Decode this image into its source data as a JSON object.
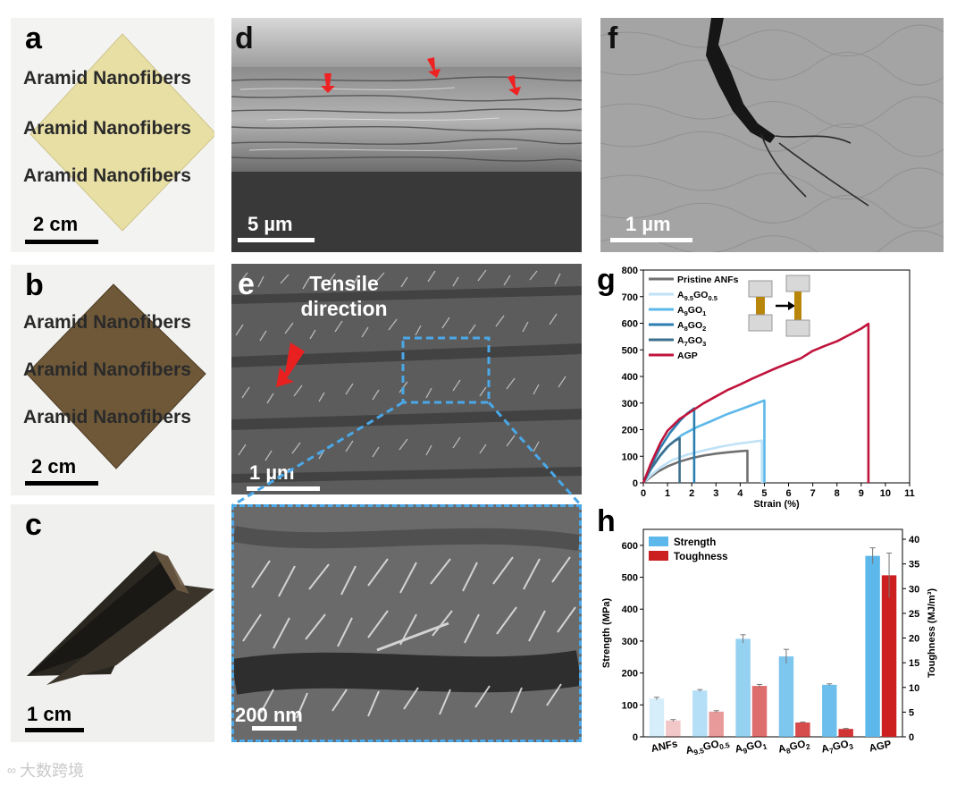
{
  "panels": {
    "a": {
      "letter": "a",
      "film_text": [
        "Aramid Nanofibers",
        "Aramid Nanofibers",
        "Aramid Nanofibers"
      ],
      "scale": "2 cm",
      "film_color": "#e8dfa4"
    },
    "b": {
      "letter": "b",
      "film_text": [
        "Aramid Nanofibers",
        "Aramid Nanofibers",
        "Aramid Nanofibers"
      ],
      "scale": "2 cm",
      "film_color": "#6e5838"
    },
    "c": {
      "letter": "c",
      "scale": "1 cm"
    },
    "d": {
      "letter": "d",
      "scale": "5 µm"
    },
    "e": {
      "letter": "e",
      "annotation": [
        "Tensile",
        "direction"
      ],
      "scale": "1 µm",
      "inset_scale": "200 nm"
    },
    "f": {
      "letter": "f",
      "scale": "1 µm"
    },
    "g": {
      "letter": "g"
    },
    "h": {
      "letter": "h"
    }
  },
  "watermark": "大数跨境",
  "chart_data": [
    {
      "type": "line",
      "panel": "g",
      "xlabel": "Strain (%)",
      "ylabel": "",
      "xlim": [
        0,
        11
      ],
      "ylim": [
        0,
        800
      ],
      "xticks": [
        0,
        1,
        2,
        3,
        4,
        5,
        6,
        7,
        8,
        9,
        10,
        11
      ],
      "yticks": [
        0,
        100,
        200,
        300,
        400,
        500,
        600,
        700,
        800
      ],
      "legend_position": "top-left",
      "series": [
        {
          "name": "Pristine ANFs",
          "color": "#707070",
          "points": [
            [
              0,
              0
            ],
            [
              0.3,
              22
            ],
            [
              0.6,
              42
            ],
            [
              1.0,
              62
            ],
            [
              1.5,
              80
            ],
            [
              2.0,
              93
            ],
            [
              2.5,
              103
            ],
            [
              3.0,
              110
            ],
            [
              3.5,
              115
            ],
            [
              4.0,
              119
            ],
            [
              4.3,
              121
            ],
            [
              4.3,
              0
            ]
          ]
        },
        {
          "name": "A9.5GO0.5",
          "color": "#bfe2f7",
          "points": [
            [
              0,
              0
            ],
            [
              0.3,
              28
            ],
            [
              0.7,
              58
            ],
            [
              1.2,
              86
            ],
            [
              1.8,
              106
            ],
            [
              2.5,
              122
            ],
            [
              3.2,
              136
            ],
            [
              3.8,
              146
            ],
            [
              4.4,
              153
            ],
            [
              4.9,
              159
            ],
            [
              4.9,
              0
            ]
          ]
        },
        {
          "name": "A9GO1",
          "color": "#5cb8ea",
          "points": [
            [
              0,
              0
            ],
            [
              0.3,
              48
            ],
            [
              0.7,
              102
            ],
            [
              1.1,
              145
            ],
            [
              1.6,
              180
            ],
            [
              2.2,
              209
            ],
            [
              2.8,
              232
            ],
            [
              3.4,
              256
            ],
            [
              4.0,
              276
            ],
            [
              4.6,
              296
            ],
            [
              5.0,
              310
            ],
            [
              5.0,
              0
            ]
          ]
        },
        {
          "name": "A8GO2",
          "color": "#2b7fb0",
          "points": [
            [
              0,
              0
            ],
            [
              0.3,
              62
            ],
            [
              0.7,
              132
            ],
            [
              1.1,
              188
            ],
            [
              1.5,
              232
            ],
            [
              1.8,
              260
            ],
            [
              2.1,
              280
            ],
            [
              2.1,
              0
            ]
          ]
        },
        {
          "name": "A7GO3",
          "color": "#3d6f8e",
          "points": [
            [
              0,
              0
            ],
            [
              0.3,
              52
            ],
            [
              0.7,
              104
            ],
            [
              1.0,
              136
            ],
            [
              1.3,
              158
            ],
            [
              1.5,
              168
            ],
            [
              1.5,
              0
            ]
          ]
        },
        {
          "name": "AGP",
          "color": "#c0143c",
          "points": [
            [
              0,
              0
            ],
            [
              0.3,
              70
            ],
            [
              0.7,
              150
            ],
            [
              1.0,
              196
            ],
            [
              1.5,
              240
            ],
            [
              2.0,
              270
            ],
            [
              2.5,
              300
            ],
            [
              3.0,
              325
            ],
            [
              3.5,
              350
            ],
            [
              4.0,
              370
            ],
            [
              4.5,
              392
            ],
            [
              5.0,
              412
            ],
            [
              5.5,
              432
            ],
            [
              6.0,
              450
            ],
            [
              6.5,
              468
            ],
            [
              7.0,
              496
            ],
            [
              7.5,
              515
            ],
            [
              8.0,
              532
            ],
            [
              8.5,
              556
            ],
            [
              9.0,
              580
            ],
            [
              9.3,
              598
            ],
            [
              9.3,
              0
            ]
          ]
        }
      ],
      "legend_labels": [
        {
          "base": "Pristine ANFs",
          "subs": []
        },
        {
          "base": "A",
          "subs": [
            [
              "9.5",
              "GO"
            ],
            [
              "0.5",
              ""
            ]
          ]
        },
        {
          "base": "A",
          "subs": [
            [
              "9",
              "GO"
            ],
            [
              "1",
              ""
            ]
          ]
        },
        {
          "base": "A",
          "subs": [
            [
              "8",
              "GO"
            ],
            [
              "2",
              ""
            ]
          ]
        },
        {
          "base": "A",
          "subs": [
            [
              "7",
              "GO"
            ],
            [
              "3",
              ""
            ]
          ]
        },
        {
          "base": "AGP",
          "subs": []
        }
      ]
    },
    {
      "type": "bar",
      "panel": "h",
      "categories": [
        "ANFs",
        "A9.5GO0.5",
        "A9GO1",
        "A8GO2",
        "A7GO3",
        "AGP"
      ],
      "category_labels": [
        {
          "base": "ANFs",
          "subs": []
        },
        {
          "base": "A",
          "subs": [
            [
              "9.5",
              "GO"
            ],
            [
              "0.5",
              ""
            ]
          ]
        },
        {
          "base": "A",
          "subs": [
            [
              "9",
              "GO"
            ],
            [
              "1",
              ""
            ]
          ]
        },
        {
          "base": "A",
          "subs": [
            [
              "8",
              "GO"
            ],
            [
              "2",
              ""
            ]
          ]
        },
        {
          "base": "A",
          "subs": [
            [
              "7",
              "GO"
            ],
            [
              "3",
              ""
            ]
          ]
        },
        {
          "base": "AGP",
          "subs": []
        }
      ],
      "ylabel": "Strength (MPa)",
      "ylabel_right": "Toughness (MJ/m³)",
      "ylim": [
        0,
        650
      ],
      "ylim_right": [
        0,
        42
      ],
      "yticks": [
        0,
        100,
        200,
        300,
        400,
        500,
        600
      ],
      "yticks_right": [
        0,
        5,
        10,
        15,
        20,
        25,
        30,
        35,
        40
      ],
      "legend_position": "top-left",
      "series": [
        {
          "name": "Strength",
          "axis": "left",
          "color": "#5cb8ea",
          "values": [
            120,
            145,
            307,
            252,
            163,
            567
          ],
          "errors": [
            4,
            3,
            13,
            22,
            3,
            25
          ],
          "opacity": [
            0.25,
            0.45,
            0.65,
            0.8,
            0.9,
            1.0
          ]
        },
        {
          "name": "Toughness",
          "axis": "right",
          "color": "#cc1f1f",
          "values": [
            3.3,
            5.1,
            10.3,
            2.9,
            1.6,
            32.7
          ],
          "errors": [
            0.2,
            0.2,
            0.3,
            0.1,
            0.1,
            4.5
          ],
          "opacity": [
            0.25,
            0.45,
            0.65,
            0.8,
            0.9,
            1.0
          ]
        }
      ]
    }
  ]
}
